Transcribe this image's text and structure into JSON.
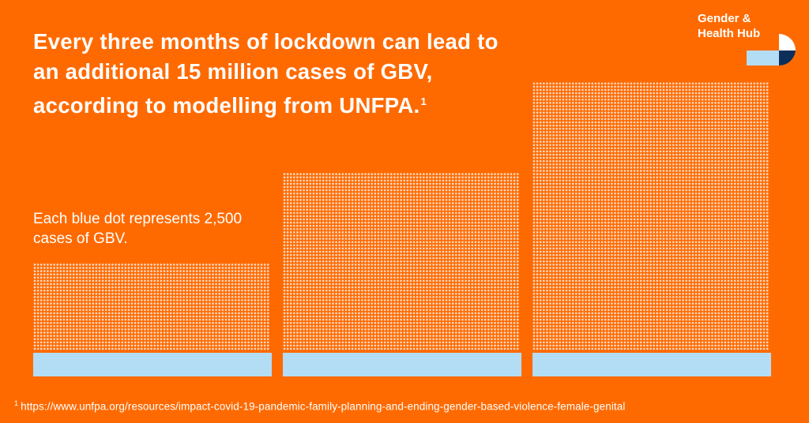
{
  "headline": {
    "text": "Every three months of lockdown can lead to an additional 15 million cases of GBV, according to modelling from UNFPA.",
    "footnote_marker": "1"
  },
  "brand": {
    "line1": "Gender &",
    "line2": "Health Hub",
    "logo_icon": "gender-health-hub-logo-icon",
    "colors": {
      "light_blue": "#b3dcf5",
      "navy": "#0e2f5a",
      "white": "#ffffff"
    }
  },
  "legend": {
    "text": "Each blue dot represents 2,500 cases of GBV."
  },
  "footnote": {
    "marker": "1",
    "url": "https://www.unfpa.org/resources/impact-covid-19-pandemic-family-planning-and-ending-gender-based-violence-female-genital"
  },
  "chart_data": {
    "type": "bar",
    "representation": "dot matrix (each dot = 2,500 cases)",
    "categories": [
      "",
      "",
      ""
    ],
    "values": [
      5,
      10,
      15
    ],
    "units": "million cases of GBV",
    "xlabel": "",
    "ylabel": "",
    "grid": false,
    "colors": {
      "background": "#ff6a00",
      "dot": "#ffd7bd",
      "base": "#b3dcf5"
    }
  }
}
